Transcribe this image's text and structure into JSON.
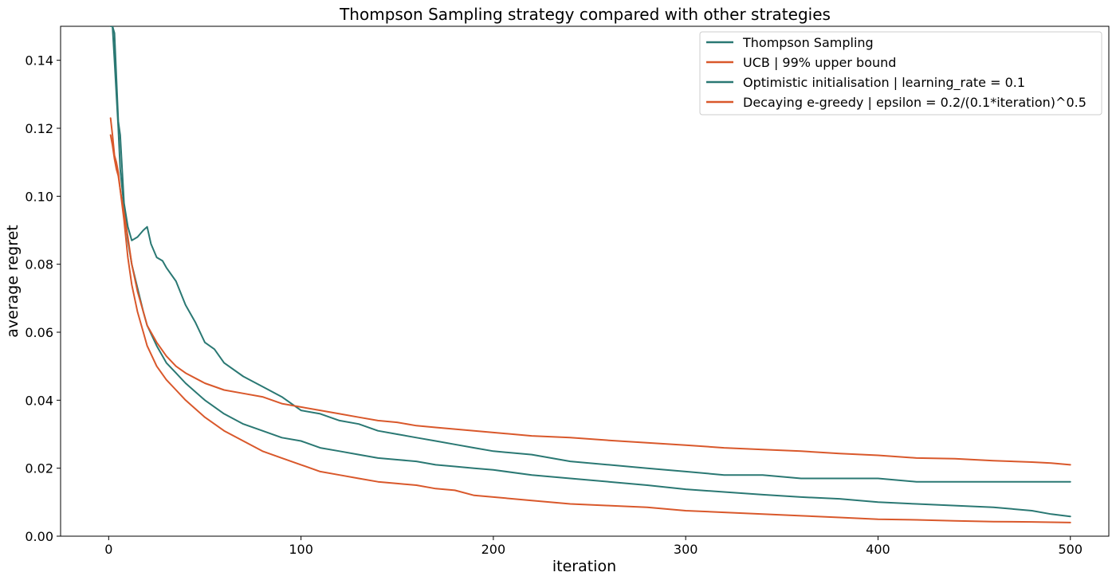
{
  "chart_data": {
    "type": "line",
    "title": "Thompson Sampling strategy compared with other strategies",
    "xlabel": "iteration",
    "ylabel": "average regret",
    "xlim": [
      -25,
      520
    ],
    "ylim": [
      0,
      0.15
    ],
    "xticks": [
      0,
      100,
      200,
      300,
      400,
      500
    ],
    "xtick_labels": [
      "0",
      "100",
      "200",
      "300",
      "400",
      "500"
    ],
    "yticks": [
      0,
      0.02,
      0.04,
      0.06,
      0.08,
      0.1,
      0.12,
      0.14
    ],
    "ytick_labels": [
      "0.00",
      "0.02",
      "0.04",
      "0.06",
      "0.08",
      "0.10",
      "0.12",
      "0.14"
    ],
    "grid": false,
    "legend_position": "top-right",
    "series": [
      {
        "name": "Thompson Sampling",
        "color": "#2a7873",
        "x": [
          2,
          3,
          4,
          5,
          6,
          8,
          10,
          12,
          15,
          18,
          20,
          22,
          25,
          28,
          30,
          35,
          40,
          45,
          50,
          55,
          60,
          70,
          80,
          90,
          100,
          110,
          120,
          130,
          140,
          150,
          160,
          170,
          180,
          190,
          200,
          220,
          240,
          260,
          280,
          300,
          320,
          340,
          360,
          380,
          400,
          420,
          440,
          460,
          480,
          490,
          500
        ],
        "y": [
          0.15,
          0.148,
          0.135,
          0.122,
          0.118,
          0.098,
          0.091,
          0.087,
          0.088,
          0.09,
          0.091,
          0.086,
          0.082,
          0.081,
          0.079,
          0.075,
          0.068,
          0.063,
          0.057,
          0.055,
          0.051,
          0.047,
          0.044,
          0.041,
          0.037,
          0.036,
          0.034,
          0.033,
          0.031,
          0.03,
          0.029,
          0.028,
          0.027,
          0.026,
          0.025,
          0.024,
          0.022,
          0.021,
          0.02,
          0.019,
          0.018,
          0.018,
          0.017,
          0.017,
          0.017,
          0.016,
          0.016,
          0.016,
          0.016,
          0.016,
          0.016
        ]
      },
      {
        "name": "UCB | 99% upper bound",
        "color": "#d9582b",
        "x": [
          1,
          2,
          3,
          4,
          5,
          6,
          8,
          10,
          12,
          15,
          18,
          20,
          25,
          30,
          35,
          40,
          50,
          60,
          70,
          80,
          90,
          100,
          110,
          120,
          130,
          140,
          150,
          160,
          170,
          180,
          190,
          200,
          220,
          240,
          260,
          280,
          300,
          320,
          340,
          360,
          380,
          400,
          420,
          440,
          460,
          480,
          490,
          500
        ],
        "y": [
          0.123,
          0.118,
          0.112,
          0.11,
          0.107,
          0.102,
          0.093,
          0.082,
          0.074,
          0.066,
          0.06,
          0.056,
          0.05,
          0.046,
          0.043,
          0.04,
          0.035,
          0.031,
          0.028,
          0.025,
          0.023,
          0.021,
          0.019,
          0.018,
          0.017,
          0.016,
          0.0155,
          0.015,
          0.014,
          0.0135,
          0.012,
          0.0115,
          0.0105,
          0.0095,
          0.009,
          0.0085,
          0.0075,
          0.007,
          0.0065,
          0.006,
          0.0055,
          0.005,
          0.0048,
          0.0045,
          0.0043,
          0.0042,
          0.0041,
          0.004
        ]
      },
      {
        "name": "Optimistic initialisation | learning_rate = 0.1",
        "color": "#2a7873",
        "x": [
          1,
          2,
          3,
          4,
          5,
          6,
          8,
          10,
          12,
          15,
          18,
          20,
          25,
          30,
          35,
          40,
          50,
          60,
          70,
          80,
          90,
          100,
          110,
          120,
          130,
          140,
          150,
          160,
          170,
          180,
          190,
          200,
          220,
          240,
          260,
          280,
          300,
          320,
          340,
          360,
          380,
          400,
          420,
          440,
          460,
          480,
          490,
          500
        ],
        "y": [
          0.15,
          0.15,
          0.14,
          0.13,
          0.12,
          0.108,
          0.097,
          0.087,
          0.08,
          0.073,
          0.066,
          0.062,
          0.056,
          0.051,
          0.048,
          0.045,
          0.04,
          0.036,
          0.033,
          0.031,
          0.029,
          0.028,
          0.026,
          0.025,
          0.024,
          0.023,
          0.0225,
          0.022,
          0.021,
          0.0205,
          0.02,
          0.0195,
          0.018,
          0.017,
          0.016,
          0.015,
          0.0138,
          0.013,
          0.0122,
          0.0115,
          0.011,
          0.01,
          0.0095,
          0.009,
          0.0085,
          0.0075,
          0.0065,
          0.0058
        ]
      },
      {
        "name": "Decaying e-greedy | epsilon = 0.2/(0.1*iteration)^0.5",
        "color": "#d9582b",
        "x": [
          1,
          2,
          3,
          4,
          5,
          6,
          8,
          10,
          12,
          15,
          18,
          20,
          25,
          30,
          35,
          40,
          50,
          60,
          70,
          80,
          90,
          100,
          110,
          120,
          130,
          140,
          150,
          160,
          170,
          180,
          190,
          200,
          220,
          240,
          260,
          280,
          300,
          320,
          340,
          360,
          380,
          400,
          420,
          440,
          460,
          480,
          490,
          500
        ],
        "y": [
          0.118,
          0.115,
          0.111,
          0.108,
          0.106,
          0.102,
          0.095,
          0.088,
          0.08,
          0.072,
          0.066,
          0.062,
          0.057,
          0.053,
          0.05,
          0.048,
          0.045,
          0.043,
          0.042,
          0.041,
          0.039,
          0.038,
          0.037,
          0.036,
          0.035,
          0.034,
          0.0335,
          0.0325,
          0.032,
          0.0315,
          0.031,
          0.0305,
          0.0295,
          0.029,
          0.0282,
          0.0275,
          0.0268,
          0.026,
          0.0255,
          0.025,
          0.0243,
          0.0238,
          0.023,
          0.0228,
          0.0222,
          0.0218,
          0.0215,
          0.021
        ]
      }
    ]
  }
}
